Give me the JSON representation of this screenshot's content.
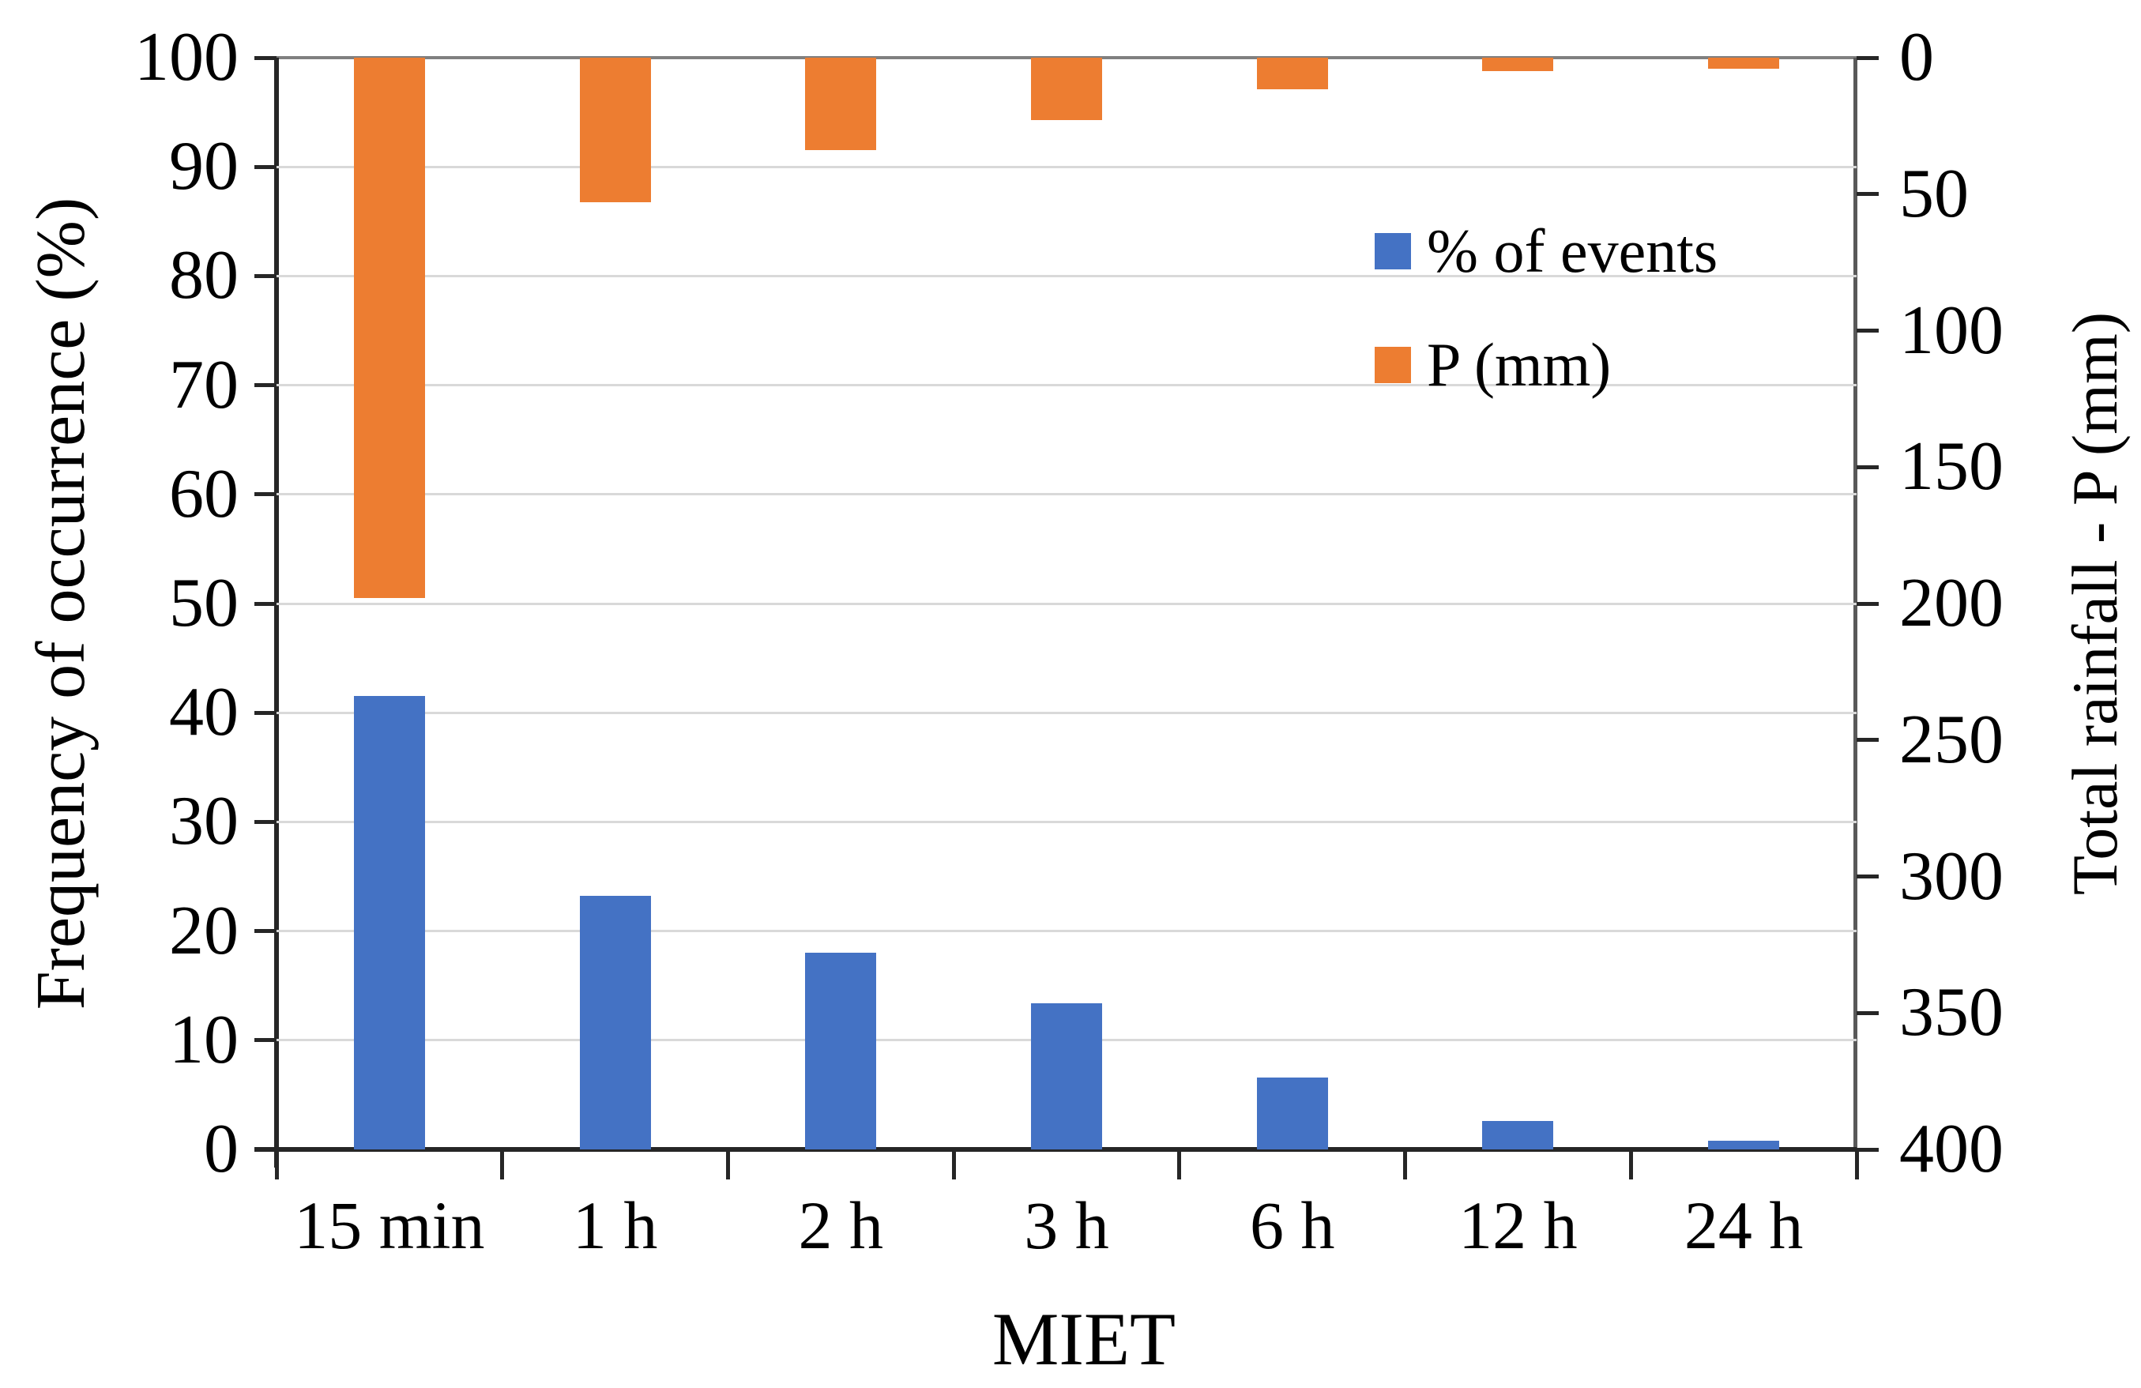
{
  "chart_data": {
    "type": "bar",
    "title": "",
    "categories": [
      "15 min",
      "1 h",
      "2 h",
      "3 h",
      "6 h",
      "12 h",
      "24 h"
    ],
    "series": [
      {
        "name": "% of events",
        "axis": "left",
        "color": "#4472C4",
        "values": [
          41.5,
          23.2,
          18,
          13.4,
          6.6,
          2.6,
          0.8
        ]
      },
      {
        "name": "P (mm)",
        "axis": "right",
        "color": "#ED7D31",
        "values": [
          198,
          53,
          34,
          23,
          11.5,
          5,
          4
        ]
      }
    ],
    "xlabel": "MIET",
    "left_axis": {
      "label": "Frequency of occurrence (%)",
      "min": 0,
      "max": 100,
      "tick_step": 10,
      "ticks": [
        0,
        10,
        20,
        30,
        40,
        50,
        60,
        70,
        80,
        90,
        100
      ]
    },
    "right_axis": {
      "label": "Total rainfall - P (mm)",
      "min": 0,
      "max": 400,
      "tick_step": 50,
      "inverted": true,
      "ticks": [
        0,
        50,
        100,
        150,
        200,
        250,
        300,
        350,
        400
      ]
    },
    "legend": {
      "position": "inside-top-right",
      "entries": [
        "% of events",
        "P (mm)"
      ]
    },
    "grid": true,
    "colors": {
      "blue_series": "#4472C4",
      "orange_series": "#ED7D31",
      "gridline": "#d9d9d9",
      "axis": "#262626",
      "border_top": "#808080",
      "border_right": "#595959",
      "background": "#ffffff"
    }
  }
}
